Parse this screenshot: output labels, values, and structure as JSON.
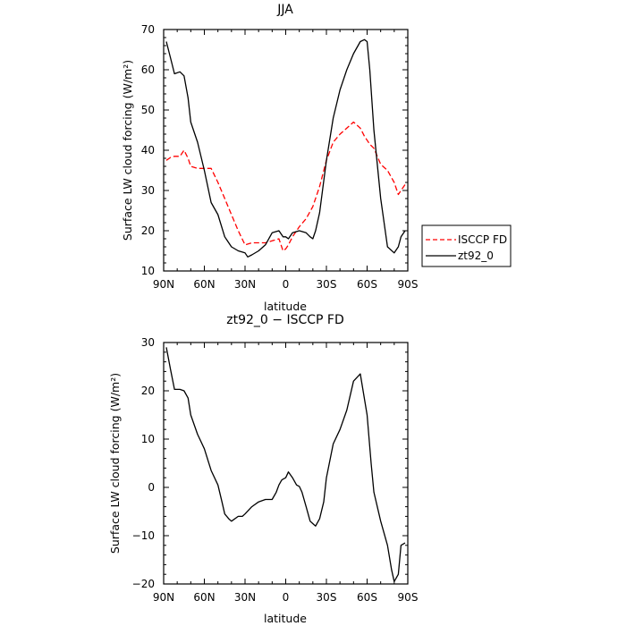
{
  "chart_data": [
    {
      "type": "line",
      "title": "JJA",
      "xlabel": "latitude",
      "ylabel": "Surface LW cloud forcing (W/m²)",
      "xlim": [
        90,
        -90
      ],
      "ylim": [
        10,
        70
      ],
      "xticks": [
        90,
        60,
        30,
        0,
        -30,
        -60,
        -90
      ],
      "xtick_labels": [
        "90N",
        "60N",
        "30N",
        "0",
        "30S",
        "60S",
        "90S"
      ],
      "yticks": [
        10,
        20,
        30,
        40,
        50,
        60,
        70
      ],
      "ytick_labels": [
        "10",
        "20",
        "30",
        "40",
        "50",
        "60",
        "70"
      ],
      "legend_position": "right, outside, below middle",
      "series": [
        {
          "name": "ISCCP FD",
          "color": "#ff0000",
          "dash": "dashed",
          "x": [
            88,
            85,
            82,
            78,
            75,
            72,
            70,
            65,
            60,
            55,
            50,
            45,
            40,
            35,
            30,
            25,
            20,
            15,
            10,
            5,
            2,
            0,
            -2,
            -5,
            -10,
            -15,
            -20,
            -25,
            -30,
            -35,
            -40,
            -45,
            -50,
            -55,
            -58,
            -60,
            -62,
            -65,
            -70,
            -75,
            -80,
            -83,
            -85,
            -88
          ],
          "values": [
            37.5,
            38.2,
            38.5,
            38.5,
            40.0,
            38.0,
            36.0,
            35.5,
            35.5,
            35.5,
            32.0,
            28.0,
            24.0,
            20.0,
            16.5,
            17.0,
            17.0,
            17.0,
            17.5,
            18.0,
            15.0,
            15.5,
            16.5,
            18.5,
            21.0,
            23.0,
            26.0,
            31.0,
            37.5,
            42.0,
            44.0,
            45.5,
            47.0,
            45.5,
            43.5,
            42.5,
            41.5,
            40.5,
            36.5,
            35.0,
            32.0,
            29.0,
            30.0,
            31.5
          ]
        },
        {
          "name": "zt92_0",
          "color": "#000000",
          "dash": "solid",
          "x": [
            88,
            85,
            82,
            78,
            75,
            72,
            70,
            65,
            60,
            55,
            50,
            45,
            40,
            35,
            30,
            28,
            25,
            20,
            15,
            10,
            5,
            2,
            0,
            -2,
            -5,
            -10,
            -15,
            -18,
            -20,
            -22,
            -25,
            -30,
            -35,
            -40,
            -45,
            -50,
            -55,
            -58,
            -60,
            -62,
            -65,
            -70,
            -75,
            -80,
            -83,
            -85,
            -88
          ],
          "values": [
            67.0,
            63.0,
            59.0,
            59.5,
            58.5,
            53.0,
            47.0,
            42.0,
            35.0,
            27.0,
            24.0,
            18.5,
            16.0,
            15.0,
            14.5,
            13.5,
            14.0,
            15.0,
            16.5,
            19.5,
            20.0,
            18.5,
            18.5,
            18.0,
            19.5,
            20.0,
            19.5,
            18.5,
            18.0,
            20.0,
            24.5,
            37.5,
            48.0,
            55.0,
            60.0,
            64.0,
            67.0,
            67.5,
            67.0,
            60.0,
            45.0,
            28.0,
            16.0,
            14.5,
            16.0,
            18.5,
            20.0
          ]
        }
      ]
    },
    {
      "type": "line",
      "title": "zt92_0 − ISCCP FD",
      "xlabel": "latitude",
      "ylabel": "Surface LW cloud forcing (W/m²)",
      "xlim": [
        90,
        -90
      ],
      "ylim": [
        -20,
        30
      ],
      "xticks": [
        90,
        60,
        30,
        0,
        -30,
        -60,
        -90
      ],
      "xtick_labels": [
        "90N",
        "60N",
        "30N",
        "0",
        "30S",
        "60S",
        "90S"
      ],
      "yticks": [
        -20,
        -10,
        0,
        10,
        20,
        30
      ],
      "ytick_labels": [
        "−20",
        "−10",
        "0",
        "10",
        "20",
        "30"
      ],
      "series": [
        {
          "color": "#000000",
          "dash": "solid",
          "x": [
            88,
            85,
            82,
            78,
            75,
            72,
            70,
            65,
            60,
            55,
            50,
            47,
            45,
            42,
            40,
            35,
            32,
            30,
            25,
            20,
            15,
            10,
            7,
            5,
            3,
            2,
            0,
            -2,
            -5,
            -8,
            -10,
            -12,
            -15,
            -18,
            -20,
            -22,
            -25,
            -28,
            -30,
            -35,
            -40,
            -45,
            -50,
            -55,
            -60,
            -63,
            -65,
            -70,
            -75,
            -78,
            -80,
            -83,
            -85,
            -88
          ],
          "values": [
            29.0,
            24.5,
            20.3,
            20.3,
            20.0,
            18.5,
            15.0,
            11.0,
            8.0,
            3.5,
            0.5,
            -3.0,
            -5.5,
            -6.5,
            -7.0,
            -6.0,
            -6.0,
            -5.5,
            -4.0,
            -3.0,
            -2.5,
            -2.5,
            -1.0,
            0.5,
            1.5,
            1.7,
            2.0,
            3.2,
            2.0,
            0.5,
            0.2,
            -1.0,
            -4.0,
            -7.0,
            -7.5,
            -8.0,
            -6.5,
            -3.0,
            2.0,
            9.0,
            12.0,
            16.0,
            22.0,
            23.5,
            15.0,
            5.0,
            -1.0,
            -7.0,
            -12.0,
            -17.0,
            -19.5,
            -18.0,
            -12.0,
            -11.5
          ]
        }
      ]
    }
  ]
}
